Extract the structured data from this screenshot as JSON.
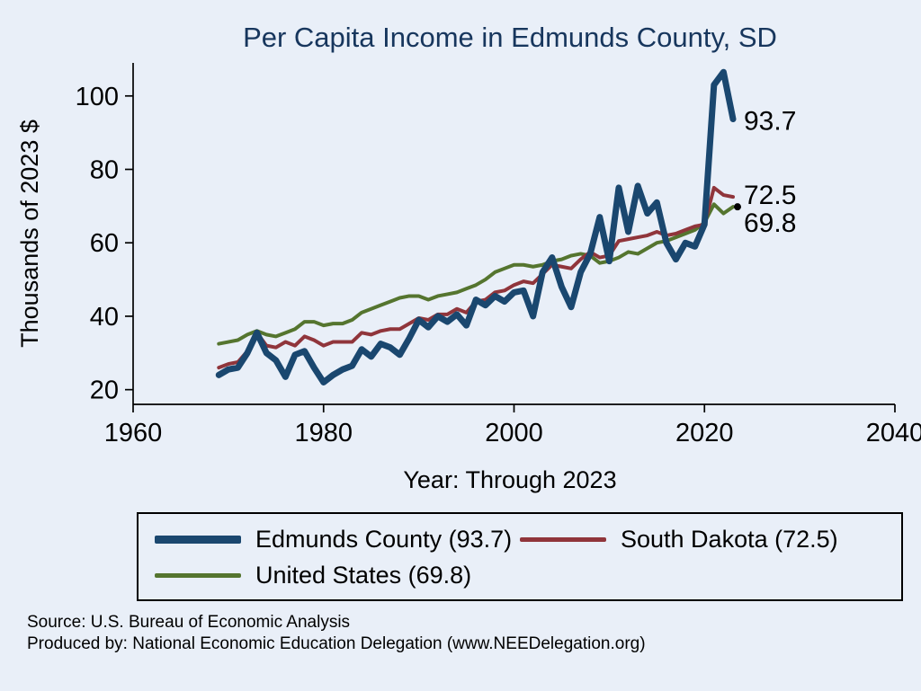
{
  "title": "Per Capita Income in Edmunds County, SD",
  "colors": {
    "background": "#e9eff8",
    "title": "#17365d",
    "axis": "#000000",
    "edmunds": "#1a476f",
    "south_dakota": "#90353b",
    "united_states": "#55752f"
  },
  "chart_data": {
    "type": "line",
    "title": "Per Capita Income in Edmunds County, SD",
    "xlabel": "Year: Through 2023",
    "ylabel": "Thousands of 2023 $",
    "xlim": [
      1960,
      2040
    ],
    "ylim": [
      16,
      109
    ],
    "x_ticks": [
      1960,
      1980,
      2000,
      2020,
      2040
    ],
    "y_ticks": [
      20,
      40,
      60,
      80,
      100
    ],
    "grid": false,
    "legend_position": "bottom",
    "x": [
      1969,
      1970,
      1971,
      1972,
      1973,
      1974,
      1975,
      1976,
      1977,
      1978,
      1979,
      1980,
      1981,
      1982,
      1983,
      1984,
      1985,
      1986,
      1987,
      1988,
      1989,
      1990,
      1991,
      1992,
      1993,
      1994,
      1995,
      1996,
      1997,
      1998,
      1999,
      2000,
      2001,
      2002,
      2003,
      2004,
      2005,
      2006,
      2007,
      2008,
      2009,
      2010,
      2011,
      2012,
      2013,
      2014,
      2015,
      2016,
      2017,
      2018,
      2019,
      2020,
      2021,
      2022,
      2023
    ],
    "series": [
      {
        "name": "Edmunds County (93.7)",
        "color": "#1a476f",
        "width": 7,
        "end_label": "93.7",
        "label_dy": 12,
        "end_dot": false,
        "values": [
          24.0,
          25.5,
          26.0,
          30.0,
          35.5,
          30.0,
          28.0,
          23.5,
          29.5,
          30.5,
          26.0,
          22.0,
          24.0,
          25.5,
          26.5,
          31.0,
          29.0,
          32.5,
          31.5,
          29.5,
          34.0,
          39.0,
          37.0,
          40.0,
          38.5,
          40.5,
          37.5,
          44.5,
          43.0,
          45.5,
          44.0,
          46.5,
          47.0,
          40.0,
          52.0,
          56.0,
          48.0,
          42.5,
          52.0,
          57.0,
          67.0,
          55.0,
          75.0,
          63.0,
          75.5,
          68.0,
          71.0,
          60.0,
          55.5,
          60.0,
          59.0,
          65.0,
          103.0,
          106.5,
          93.7
        ]
      },
      {
        "name": "South Dakota (72.5)",
        "color": "#90353b",
        "width": 4,
        "end_label": "72.5",
        "label_dy": 8,
        "end_dot": false,
        "values": [
          26.0,
          27.0,
          27.5,
          30.5,
          35.5,
          32.0,
          31.5,
          33.0,
          32.0,
          34.5,
          33.5,
          32.0,
          33.0,
          33.0,
          33.0,
          35.5,
          35.0,
          36.0,
          36.5,
          36.5,
          38.0,
          39.5,
          39.0,
          40.5,
          40.5,
          42.0,
          41.0,
          44.0,
          44.5,
          46.5,
          47.0,
          48.5,
          49.5,
          49.0,
          51.5,
          54.0,
          53.5,
          53.0,
          55.5,
          57.5,
          56.0,
          56.5,
          60.5,
          61.0,
          61.5,
          62.0,
          63.0,
          62.0,
          62.5,
          63.5,
          64.5,
          65.0,
          75.0,
          73.0,
          72.5
        ]
      },
      {
        "name": "United States (69.8)",
        "color": "#55752f",
        "width": 4,
        "end_label": "69.8",
        "label_dy": 28,
        "end_dot": true,
        "values": [
          32.5,
          33.0,
          33.5,
          35.0,
          36.0,
          35.0,
          34.5,
          35.5,
          36.5,
          38.5,
          38.5,
          37.5,
          38.0,
          38.0,
          39.0,
          41.0,
          42.0,
          43.0,
          44.0,
          45.0,
          45.5,
          45.5,
          44.5,
          45.5,
          46.0,
          46.5,
          47.5,
          48.5,
          50.0,
          52.0,
          53.0,
          54.0,
          54.0,
          53.5,
          54.0,
          55.0,
          55.5,
          56.5,
          57.0,
          56.5,
          54.5,
          55.0,
          56.0,
          57.5,
          57.0,
          58.5,
          60.0,
          60.5,
          61.5,
          62.5,
          63.5,
          65.5,
          70.5,
          68.0,
          69.8
        ]
      }
    ]
  },
  "legend": {
    "items": [
      {
        "label": "Edmunds County (93.7)",
        "color": "#1a476f",
        "thickness": 9
      },
      {
        "label": "South Dakota (72.5)",
        "color": "#90353b",
        "thickness": 5
      },
      {
        "label": "United States (69.8)",
        "color": "#55752f",
        "thickness": 5
      }
    ]
  },
  "footer": {
    "line1": "Source: U.S. Bureau of Economic Analysis",
    "line2": "Produced by: National Economic Education Delegation (www.NEEDelegation.org)"
  }
}
